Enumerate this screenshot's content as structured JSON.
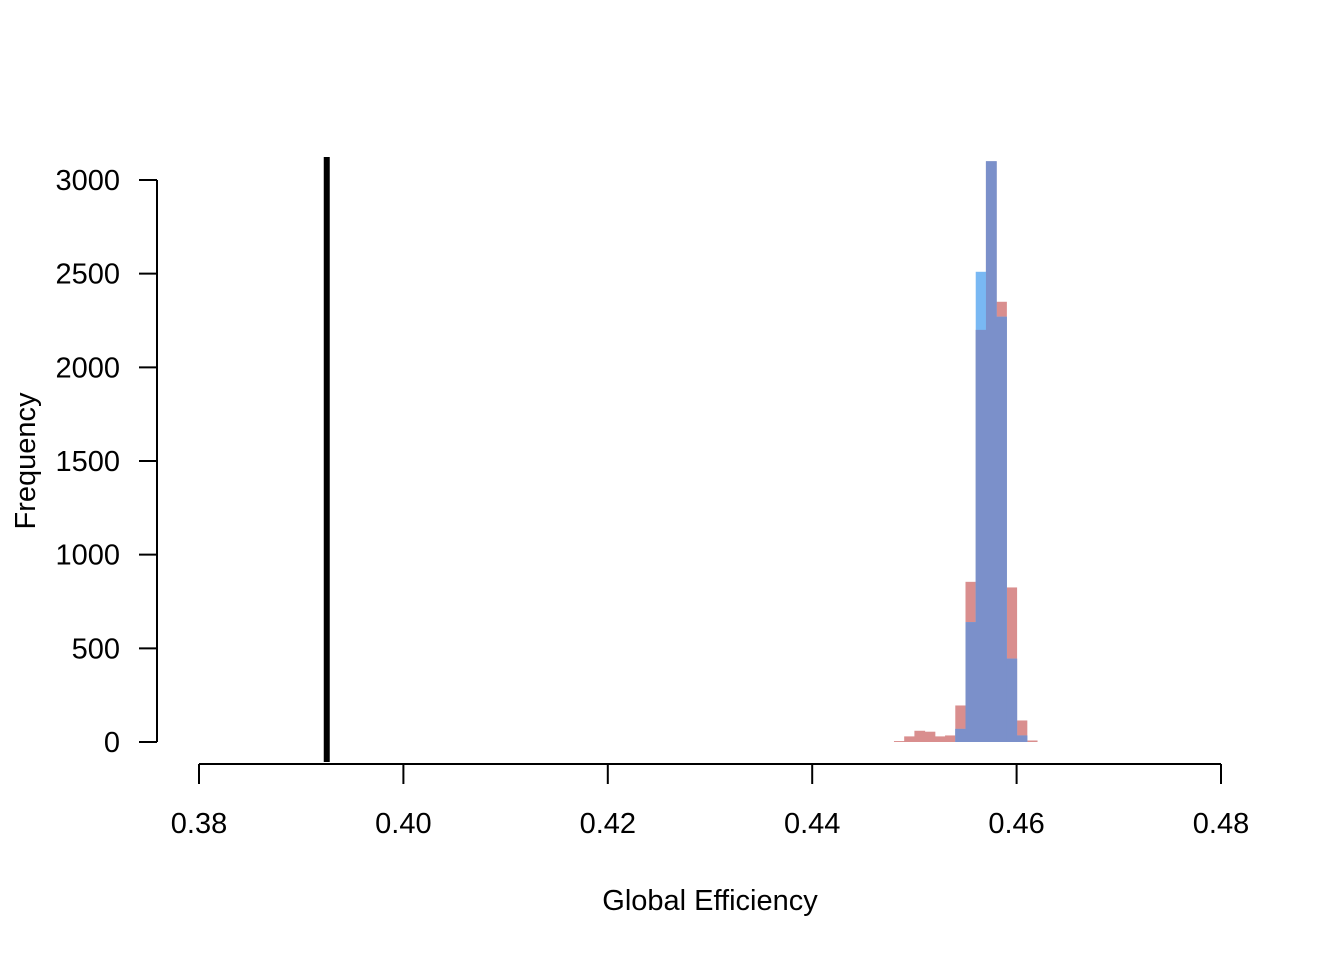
{
  "chart_data": {
    "type": "bar",
    "title": "",
    "xlabel": "Global Efficiency",
    "ylabel": "Frequency",
    "xlim": [
      0.38,
      0.48
    ],
    "ylim": [
      0,
      3000
    ],
    "x_ticks": [
      "0.38",
      "0.40",
      "0.42",
      "0.44",
      "0.46",
      "0.48"
    ],
    "y_ticks": [
      "0",
      "500",
      "1000",
      "1500",
      "2000",
      "2500",
      "3000"
    ],
    "grid": false,
    "legend": "none",
    "bin_width": 0.001,
    "reference_line": {
      "x": 0.3925,
      "color": "#000000"
    },
    "series": [
      {
        "color": "#d98e8e",
        "bins": [
          {
            "start": 0.448,
            "count": 5
          },
          {
            "start": 0.449,
            "count": 30
          },
          {
            "start": 0.45,
            "count": 60
          },
          {
            "start": 0.451,
            "count": 55
          },
          {
            "start": 0.452,
            "count": 30
          },
          {
            "start": 0.453,
            "count": 35
          },
          {
            "start": 0.454,
            "count": 195
          },
          {
            "start": 0.455,
            "count": 855
          },
          {
            "start": 0.456,
            "count": 2200
          },
          {
            "start": 0.457,
            "count": 3100
          },
          {
            "start": 0.458,
            "count": 2350
          },
          {
            "start": 0.459,
            "count": 825
          },
          {
            "start": 0.46,
            "count": 115
          },
          {
            "start": 0.461,
            "count": 8
          }
        ]
      },
      {
        "color": "#79b8f3",
        "bins": [
          {
            "start": 0.454,
            "count": 70
          },
          {
            "start": 0.455,
            "count": 640
          },
          {
            "start": 0.456,
            "count": 2510
          },
          {
            "start": 0.457,
            "count": 3100
          },
          {
            "start": 0.458,
            "count": 2270
          },
          {
            "start": 0.459,
            "count": 445
          },
          {
            "start": 0.46,
            "count": 35
          }
        ]
      }
    ]
  }
}
